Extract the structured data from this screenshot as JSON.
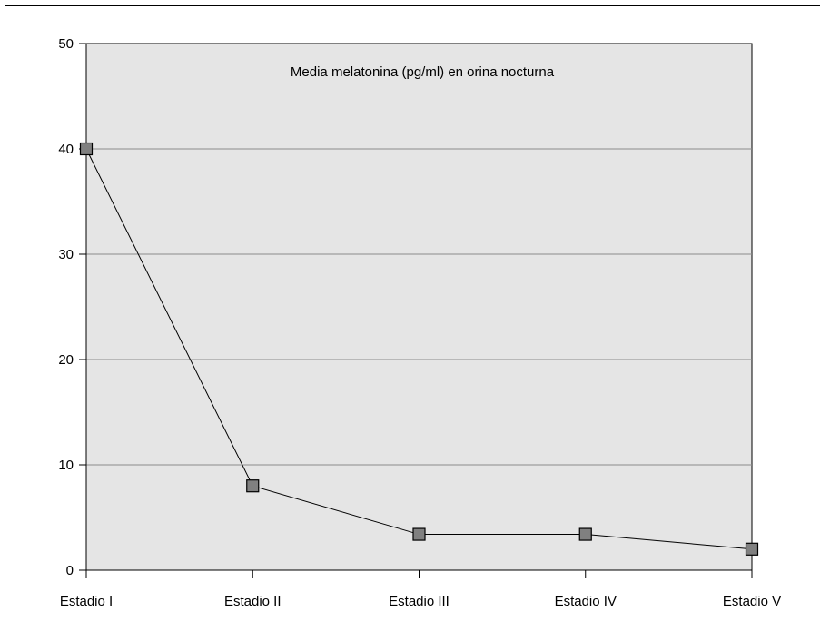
{
  "chart_data": {
    "type": "line",
    "title": "Media melatonina (pg/ml) en orina nocturna",
    "categories": [
      "Estadio I",
      "Estadio II",
      "Estadio III",
      "Estadio IV",
      "Estadio V"
    ],
    "series": [
      {
        "values": [
          40,
          8,
          3.4,
          3.4,
          2
        ]
      }
    ],
    "ylim": [
      0,
      50
    ],
    "yticks": [
      0,
      10,
      20,
      30,
      40,
      50
    ],
    "ytick_labels": [
      "0",
      "10",
      "20",
      "30",
      "40",
      "50"
    ],
    "grid": true,
    "colors": {
      "plot_background": "#e5e5e5",
      "gridline": "#8c8c8c",
      "line": "#000000",
      "marker_fill": "#808080",
      "marker_stroke": "#000000"
    }
  }
}
